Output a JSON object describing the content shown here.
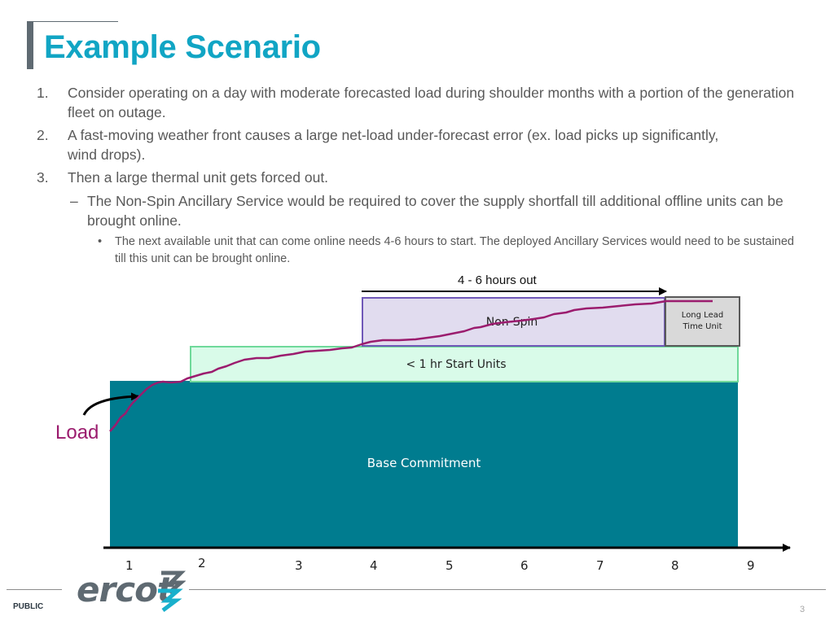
{
  "title": "Example Scenario",
  "items": [
    {
      "num": "1.",
      "text": "Consider operating on a day with moderate forecasted load during shoulder months with a portion of the generation fleet on outage."
    },
    {
      "num": "2.",
      "text": "A  fast-moving weather front causes a large net-load under-forecast error (ex. load picks up significantly, wind drops)."
    },
    {
      "num": "3.",
      "text": "Then a large thermal unit gets forced out."
    }
  ],
  "sub_item": {
    "bullet": "–",
    "text": "The Non-Spin Ancillary Service would be required to cover the supply shortfall till additional offline units can be brought online."
  },
  "subsub_item": {
    "bullet": "•",
    "text": "The next available unit that can come online needs 4-6 hours to start. The deployed Ancillary Services would need to be sustained till this unit can be brought online."
  },
  "diagram": {
    "hours_label": "4 - 6 hours out",
    "nonspin_label": "Non-Spin",
    "longlead_label": "Long Lead Time Unit",
    "start_units_label": "< 1 hr Start Units",
    "base_label": "Base Commitment",
    "load_label": "Load",
    "x_ticks": [
      "1",
      "2",
      "3",
      "4",
      "5",
      "6",
      "7",
      "8",
      "9"
    ]
  },
  "colors": {
    "title": "#11a5c4",
    "base": "#007c8f",
    "start_units_fill": "#d9fbe9",
    "start_units_border": "#6fd99a",
    "nonspin_fill": "#e1dcef",
    "nonspin_border": "#7058b8",
    "longlead_fill": "#d9d9d9",
    "longlead_border": "#595959",
    "load_line": "#9b1c6e",
    "logo": "#5f6a72",
    "logo_accent": "#19b0cc"
  },
  "footer": {
    "logo": "ercot",
    "label": "PUBLIC",
    "page": "3"
  }
}
